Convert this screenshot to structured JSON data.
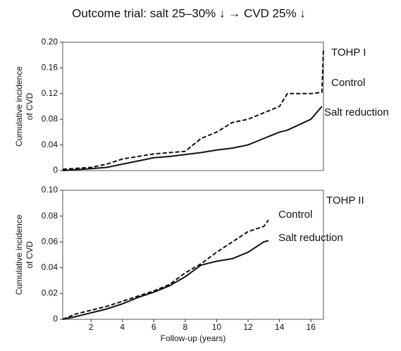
{
  "chart_data": [
    {
      "type": "line",
      "title": "Outcome trial: salt 25–30% ↓ → CVD 25% ↓",
      "annotation": "TOHP I",
      "ylabel": [
        "Cumulative incidence",
        "of CVD"
      ],
      "xlim": [
        0.2,
        16.8
      ],
      "ylim": [
        0,
        0.2
      ],
      "yticks": [
        0,
        0.04,
        0.08,
        0.12,
        0.16,
        {
          "value": 0.2,
          "label": "0.20"
        }
      ],
      "x": [
        0.2,
        2,
        3,
        4,
        5,
        6,
        7,
        8,
        9,
        10,
        11,
        12,
        13,
        14,
        14.5,
        16,
        16.7,
        16.8
      ],
      "series": [
        {
          "name": "Control",
          "color": "#111111",
          "dash": true,
          "values": [
            0.002,
            0.005,
            0.01,
            0.018,
            0.022,
            0.026,
            0.028,
            0.03,
            0.05,
            0.06,
            0.075,
            0.08,
            0.09,
            0.1,
            0.12,
            0.12,
            0.122,
            0.19
          ]
        },
        {
          "name": "Salt reduction",
          "color": "#111111",
          "dash": false,
          "values": [
            0,
            0.003,
            0.005,
            0.01,
            0.015,
            0.02,
            0.022,
            0.025,
            0.028,
            0.032,
            0.035,
            0.04,
            0.05,
            0.06,
            0.063,
            0.08,
            0.1,
            null
          ]
        }
      ]
    },
    {
      "type": "line",
      "annotation": "TOHP II",
      "ylabel": [
        "Cumulative incidence",
        "of CVD"
      ],
      "xlabel": "Follow-up (years)",
      "xlim": [
        0.2,
        16.8
      ],
      "ylim": [
        0,
        0.1
      ],
      "xticks": [
        2,
        4,
        6,
        8,
        10,
        12,
        14,
        16
      ],
      "yticks": [
        0,
        0.02,
        0.04,
        0.06,
        0.08,
        {
          "value": 0.1,
          "label": "0.10"
        }
      ],
      "x": [
        0.2,
        1,
        2,
        3,
        4,
        5,
        6,
        7,
        8,
        9,
        10,
        11,
        12,
        13,
        13.3
      ],
      "series": [
        {
          "name": "Control",
          "color": "#111111",
          "dash": true,
          "values": [
            0,
            0.004,
            0.007,
            0.01,
            0.014,
            0.018,
            0.022,
            0.027,
            0.036,
            0.043,
            0.052,
            0.06,
            0.068,
            0.072,
            0.077
          ]
        },
        {
          "name": "Salt reduction",
          "color": "#111111",
          "dash": false,
          "values": [
            0,
            0.002,
            0.005,
            0.008,
            0.012,
            0.017,
            0.021,
            0.026,
            0.033,
            0.042,
            0.045,
            0.047,
            0.052,
            0.06,
            0.061
          ]
        }
      ]
    }
  ]
}
